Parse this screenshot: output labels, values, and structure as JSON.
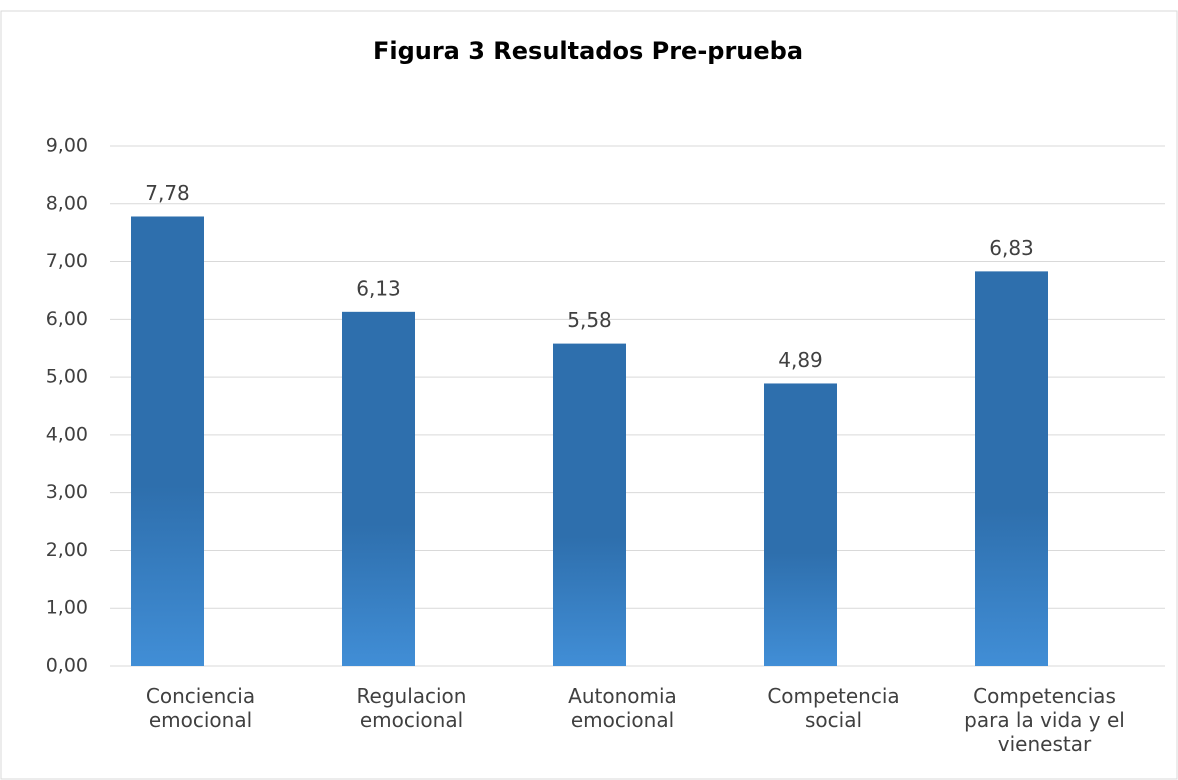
{
  "chart_data": {
    "type": "bar",
    "title": "Figura 3 Resultados Pre-prueba",
    "categories": [
      "Conciencia emocional",
      "Regulacion emocional",
      "Autonomia emocional",
      "Competencia social",
      "Competencias para la vida y el vienestar"
    ],
    "values": [
      7.78,
      6.13,
      5.58,
      4.89,
      6.83
    ],
    "value_labels": [
      "7,78",
      "6,13",
      "5,58",
      "4,89",
      "6,83"
    ],
    "color": "#2e6fad",
    "ylim": [
      0,
      9
    ],
    "yticks": [
      {
        "value": 0,
        "label": "0,00"
      },
      {
        "value": 1,
        "label": "1,00"
      },
      {
        "value": 2,
        "label": "2,00"
      },
      {
        "value": 3,
        "label": "3,00"
      },
      {
        "value": 4,
        "label": "4,00"
      },
      {
        "value": 5,
        "label": "5,00"
      },
      {
        "value": 6,
        "label": "6,00"
      },
      {
        "value": 7,
        "label": "7,00"
      },
      {
        "value": 8,
        "label": "8,00"
      },
      {
        "value": 9,
        "label": "9,00"
      }
    ],
    "grid": true
  }
}
